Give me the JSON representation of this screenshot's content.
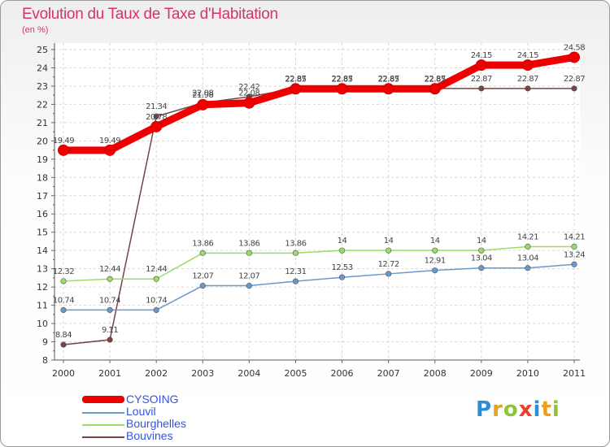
{
  "chart_data": {
    "type": "line",
    "title": "Evolution du Taux de Taxe d'Habitation",
    "subtitle": "(en %)",
    "categories": [
      "2000",
      "2001",
      "2002",
      "2003",
      "2004",
      "2005",
      "2006",
      "2007",
      "2008",
      "2009",
      "2010",
      "2011"
    ],
    "ylim": [
      8,
      25
    ],
    "yticks": [
      "8",
      "9",
      "10",
      "11",
      "12",
      "13",
      "14",
      "15",
      "16",
      "17",
      "18",
      "19",
      "20",
      "21",
      "22",
      "23",
      "24",
      "25"
    ],
    "series": [
      {
        "name": "CYSOING",
        "color": "#ee0000",
        "width": 9,
        "values": [
          19.49,
          19.49,
          20.78,
          21.98,
          22.08,
          22.85,
          22.85,
          22.85,
          22.85,
          24.15,
          24.15,
          24.58
        ],
        "labels": [
          "19.49",
          "19.49",
          "20.78",
          "21.98",
          "22.08",
          "22.85",
          "22.85",
          "22.85",
          "22.85",
          "24.15",
          "24.15",
          "24.58"
        ]
      },
      {
        "name": "Louvil",
        "color": "#6699cc",
        "width": 1.5,
        "values": [
          10.74,
          10.74,
          10.74,
          12.07,
          12.07,
          12.31,
          12.53,
          12.72,
          12.91,
          13.04,
          13.04,
          13.24
        ],
        "labels": [
          "10.74",
          "10.74",
          "10.74",
          "12.07",
          "12.07",
          "12.31",
          "12.53",
          "12.72",
          "12.91",
          "13.04",
          "13.04",
          "13.24"
        ]
      },
      {
        "name": "Bourghelles",
        "color": "#99dd66",
        "width": 1.5,
        "values": [
          12.32,
          12.44,
          12.44,
          13.86,
          13.86,
          13.86,
          14,
          14,
          14,
          14,
          14.21,
          14.21
        ],
        "labels": [
          "12.32",
          "12.44",
          "12.44",
          "13.86",
          "13.86",
          "13.86",
          "14",
          "14",
          "14",
          "14",
          "14.21",
          "14.21"
        ]
      },
      {
        "name": "Bouvines",
        "color": "#774444",
        "width": 1.5,
        "values": [
          8.84,
          9.11,
          21.34,
          22.08,
          22.42,
          22.87,
          22.87,
          22.87,
          22.87,
          22.87,
          22.87,
          22.87
        ],
        "labels": [
          "8.84",
          "9.11",
          "21.34",
          "22.08",
          "22.42",
          "22.87",
          "22.87",
          "22.87",
          "22.87",
          "22.87",
          "22.87",
          "22.87"
        ]
      }
    ]
  },
  "logo": {
    "letters": [
      "P",
      "r",
      "o",
      "x",
      "i",
      "t",
      "i"
    ],
    "colors": [
      "#2b8fd8",
      "#e8a020",
      "#8fc33a",
      "#e8402a",
      "#2b8fd8",
      "#e8a020",
      "#8fc33a"
    ]
  }
}
